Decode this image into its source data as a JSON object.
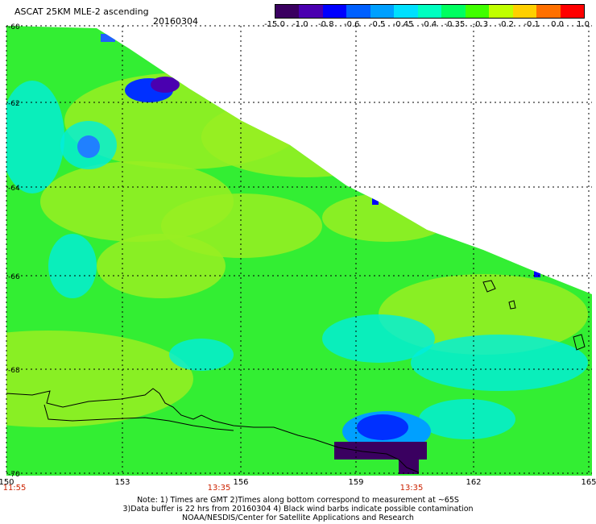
{
  "header": {
    "title": "ASCAT 25KM MLE-2 ascending",
    "date": "20160304"
  },
  "colorbar": {
    "colors": [
      "#3a0060",
      "#4a00b0",
      "#0000ff",
      "#0060ff",
      "#00a0ff",
      "#00e0ff",
      "#00ffc0",
      "#00ff60",
      "#40ff00",
      "#c0ff00",
      "#ffd000",
      "#ff7000",
      "#ff0000"
    ],
    "labels": [
      "-15.0",
      "-1.0",
      "-0.8",
      "-0.6",
      "-0.5",
      "-0.45",
      "-0.4",
      "-0.35",
      "-0.3",
      "-0.2",
      "-0.1",
      "0.0",
      "1.0"
    ]
  },
  "map": {
    "lat_labels": [
      "-60",
      "-62",
      "-64",
      "-66",
      "-68",
      "-70"
    ],
    "lon_labels": [
      "150",
      "153",
      "156",
      "159",
      "162",
      "165"
    ],
    "time_labels": [
      "11:55",
      "13:35",
      "13:35"
    ],
    "base_color": "#33ee33",
    "land_outline_color": "#000000"
  },
  "notes": {
    "line1": "Note: 1) Times are GMT 2)Times along bottom correspond to measurement at ~65S",
    "line2": "3)Data buffer is 22 hrs from 20160304 4) Black wind barbs indicate possible contamination",
    "line3": "NOAA/NESDIS/Center for Satellite Applications and Research"
  }
}
